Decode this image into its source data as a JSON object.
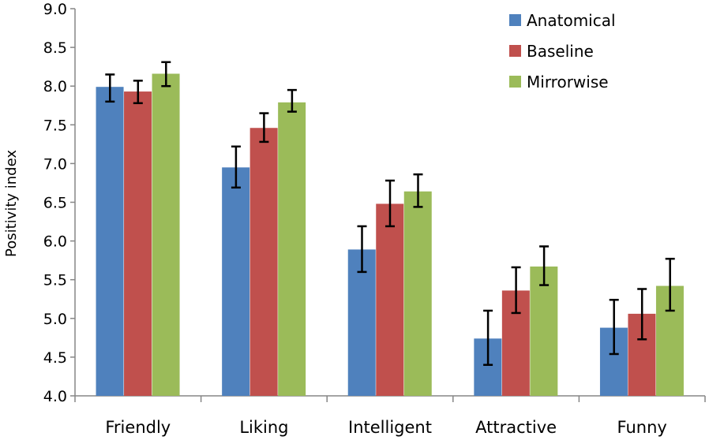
{
  "chart_data": {
    "type": "bar",
    "title": "",
    "xlabel": "",
    "ylabel": "Positivity index",
    "ylim": [
      4.0,
      9.0
    ],
    "yticks": [
      "4.0",
      "4.5",
      "5.0",
      "5.5",
      "6.0",
      "6.5",
      "7.0",
      "7.5",
      "8.0",
      "8.5",
      "9.0"
    ],
    "grid": false,
    "legend_position": "top-right",
    "categories": [
      "Friendly",
      "Liking",
      "Intelligent",
      "Attractive",
      "Funny"
    ],
    "series": [
      {
        "name": "Anatomical",
        "color": "#4F81BD",
        "values": [
          7.99,
          6.95,
          5.89,
          4.74,
          4.88
        ],
        "error_low": [
          7.8,
          6.69,
          5.6,
          4.4,
          4.54
        ],
        "error_high": [
          8.15,
          7.22,
          6.19,
          5.1,
          5.24
        ]
      },
      {
        "name": "Baseline",
        "color": "#C0504D",
        "values": [
          7.93,
          7.46,
          6.48,
          5.36,
          5.06
        ],
        "error_low": [
          7.78,
          7.28,
          6.19,
          5.07,
          4.73
        ],
        "error_high": [
          8.07,
          7.65,
          6.78,
          5.66,
          5.38
        ]
      },
      {
        "name": "Mirrorwise",
        "color": "#9BBB59",
        "values": [
          8.16,
          7.79,
          6.64,
          5.67,
          5.42
        ],
        "error_low": [
          8.0,
          7.67,
          6.44,
          5.43,
          5.1
        ],
        "error_high": [
          8.31,
          7.95,
          6.86,
          5.93,
          5.77
        ]
      }
    ]
  }
}
